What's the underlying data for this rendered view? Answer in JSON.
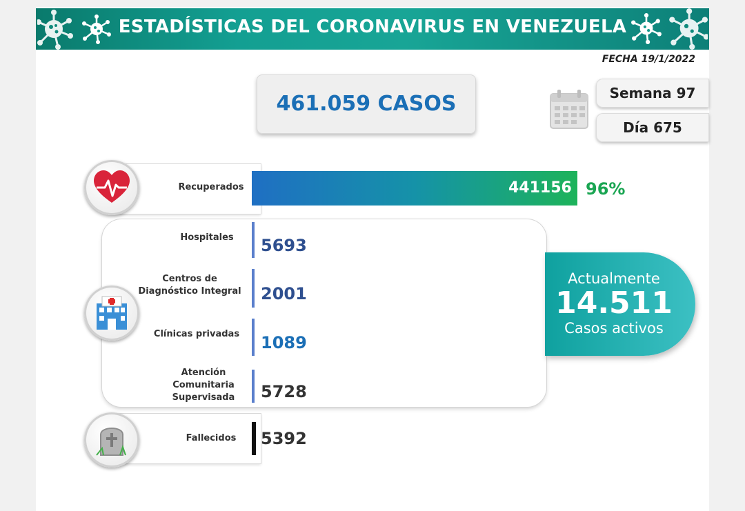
{
  "header": {
    "title": "ESTADÍSTICAS DEL CORONAVIRUS EN VENEZUELA",
    "fecha": "FECHA 19/1/2022"
  },
  "total": {
    "label": "461.059 CASOS"
  },
  "week": {
    "semana": "Semana 97",
    "dia": "Día 675"
  },
  "recuperados": {
    "label": "Recuperados",
    "value": "441156",
    "percent": "96%"
  },
  "hospitalizacion": [
    {
      "label": "Hospitales",
      "value": "5693"
    },
    {
      "label": "Centros de Diagnóstico Integral",
      "value": "2001"
    },
    {
      "label": "Clínicas privadas",
      "value": "1089"
    },
    {
      "label": "Atención Comunitaria Supervisada",
      "value": "5728"
    }
  ],
  "activos": {
    "prefix": "Actualmente",
    "value": "14.511",
    "suffix": "Casos activos"
  },
  "fallecidos": {
    "label": "Fallecidos",
    "value": "5392"
  },
  "colors": {
    "banner": "#139f92",
    "recovered_from": "#1f6fc3",
    "recovered_to": "#1db35a",
    "blue_text": "#1b6fb6",
    "teal": "#2ab4b5"
  },
  "chart_data": {
    "type": "bar",
    "categories": [
      "Recuperados",
      "Hospitales",
      "Centros de Diagnóstico Integral",
      "Clínicas privadas",
      "Atención Comunitaria Supervisada",
      "Fallecidos"
    ],
    "values": [
      441156,
      5693,
      2001,
      1089,
      5728,
      5392
    ],
    "total_cases": 461059,
    "active_cases": 14511,
    "recovered_percent": 96
  }
}
